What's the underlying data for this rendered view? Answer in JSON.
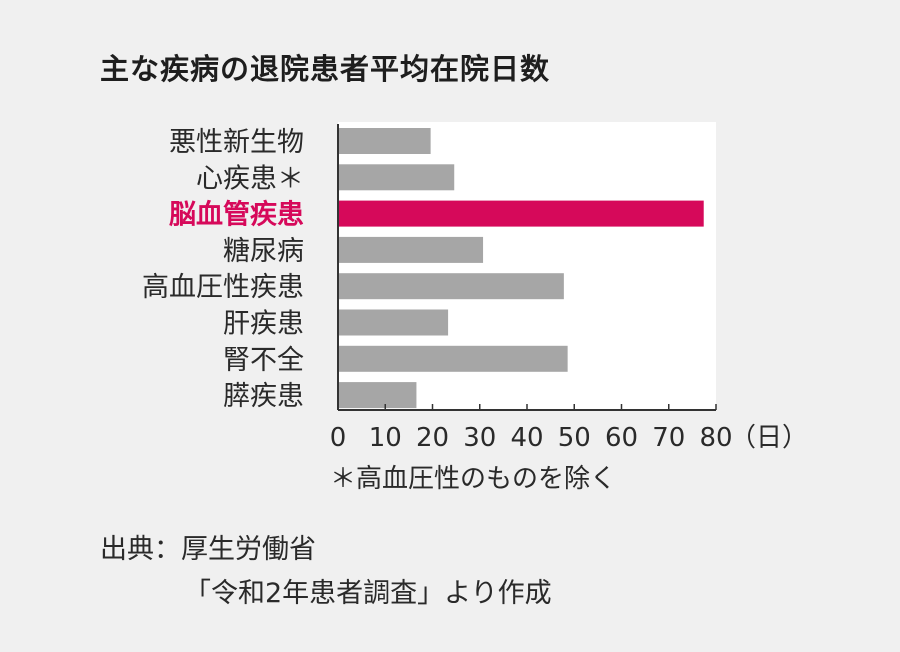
{
  "title": "主な疾病の退院患者平均在院日数",
  "note": "＊高血圧性のものを除く",
  "source": {
    "line1": "出典：厚生労働省",
    "line2": "「令和2年患者調査」より作成"
  },
  "colors": {
    "bar": "#a6a6a6",
    "highlight": "#d6095a",
    "plot_bg": "#ffffff",
    "page_bg": "#f0f0f0"
  },
  "chart_data": {
    "type": "bar",
    "orientation": "horizontal",
    "categories": [
      "悪性新生物",
      "心疾患＊",
      "脳血管疾患",
      "糖尿病",
      "高血圧性疾患",
      "肝疾患",
      "腎不全",
      "膵疾患"
    ],
    "values": [
      19.6,
      24.6,
      77.4,
      30.7,
      47.8,
      23.3,
      48.6,
      16.6
    ],
    "highlight_category": "脳血管疾患",
    "xticks": [
      "0",
      "10",
      "20",
      "30",
      "40",
      "50",
      "60",
      "70",
      "80"
    ],
    "xlim": [
      0,
      80
    ],
    "xunit": "（日）",
    "grid": false
  }
}
